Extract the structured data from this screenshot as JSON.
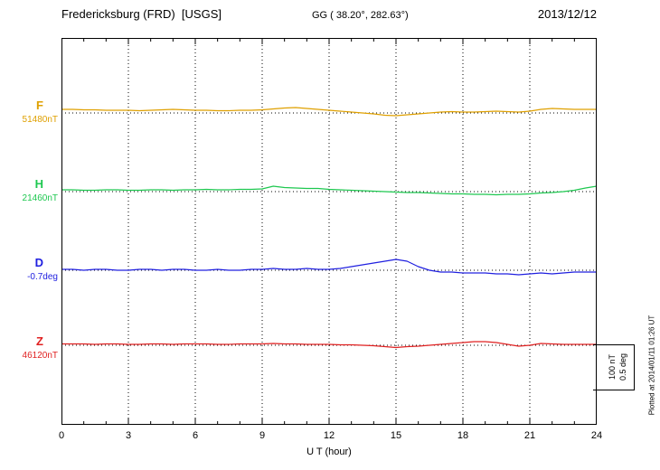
{
  "header": {
    "station_title": "Fredericksburg (FRD)  [USGS]",
    "coordinates": "GG ( 38.20°, 282.63°)",
    "date": "2013/12/12"
  },
  "axis": {
    "xlabel": "U T (hour)",
    "tick_hours": [
      0,
      3,
      6,
      9,
      12,
      15,
      18,
      21,
      24
    ],
    "tick_labels": [
      "0",
      "3",
      "6",
      "9",
      "12",
      "15",
      "18",
      "21",
      "24"
    ]
  },
  "scale_bar": {
    "nt_label": "100 nT",
    "deg_label": "0.5 deg"
  },
  "plotted_note": "Plotted at 2014/01/11 01:26 UT",
  "traces": [
    {
      "letter": "F",
      "value_label": "51480nT",
      "color": "#dfa000"
    },
    {
      "letter": "H",
      "value_label": "21460nT",
      "color": "#1ec850"
    },
    {
      "letter": "D",
      "value_label": "-0.7deg",
      "color": "#2020e0"
    },
    {
      "letter": "Z",
      "value_label": "46120nT",
      "color": "#e02020"
    }
  ],
  "chart_data": {
    "type": "line",
    "title": "Fredericksburg (FRD) [USGS] magnetogram 2013/12/12",
    "xlabel": "U T (hour)",
    "x_range_hours": [
      0,
      24
    ],
    "x_tick_interval_hours": 3,
    "grid": "vertical-dotted",
    "legend_position": "left-margin",
    "x": [
      0,
      0.5,
      1,
      1.5,
      2,
      2.5,
      3,
      3.5,
      4,
      4.5,
      5,
      5.5,
      6,
      6.5,
      7,
      7.5,
      8,
      8.5,
      9,
      9.5,
      10,
      10.5,
      11,
      11.5,
      12,
      12.5,
      13,
      13.5,
      14,
      14.5,
      15,
      15.5,
      16,
      16.5,
      17,
      17.5,
      18,
      18.5,
      19,
      19.5,
      20,
      20.5,
      21,
      21.5,
      22,
      22.5,
      23,
      23.5,
      24
    ],
    "series": [
      {
        "name": "F",
        "unit": "nT",
        "baseline": 51480,
        "color": "#dfa000",
        "offsets": [
          8,
          8,
          7,
          7,
          6,
          6,
          6,
          5,
          6,
          7,
          8,
          7,
          6,
          6,
          5,
          5,
          6,
          6,
          7,
          9,
          11,
          12,
          10,
          8,
          6,
          4,
          2,
          0,
          -2,
          -5,
          -6,
          -4,
          -2,
          0,
          2,
          3,
          2,
          2,
          3,
          4,
          3,
          2,
          4,
          8,
          10,
          9,
          8,
          8,
          8
        ]
      },
      {
        "name": "H",
        "unit": "nT",
        "baseline": 21460,
        "color": "#1ec850",
        "offsets": [
          4,
          4,
          3,
          3,
          4,
          4,
          3,
          3,
          4,
          4,
          3,
          4,
          4,
          5,
          4,
          4,
          5,
          5,
          6,
          12,
          9,
          8,
          7,
          7,
          5,
          4,
          3,
          2,
          1,
          0,
          -1,
          -2,
          -2,
          -3,
          -4,
          -5,
          -5,
          -6,
          -6,
          -7,
          -6,
          -6,
          -5,
          -3,
          -2,
          0,
          3,
          8,
          12
        ]
      },
      {
        "name": "D",
        "unit": "deg",
        "baseline": -0.7,
        "color": "#2020e0",
        "offsets": [
          0.01,
          0.01,
          0,
          0.01,
          0.01,
          0,
          0,
          0.01,
          0.01,
          0,
          0.01,
          0.01,
          0,
          0,
          0.01,
          0,
          0,
          0.01,
          0.01,
          0.02,
          0.01,
          0.01,
          0.02,
          0.01,
          0.01,
          0.02,
          0.04,
          0.06,
          0.08,
          0.1,
          0.12,
          0.1,
          0.04,
          0,
          -0.02,
          -0.02,
          -0.03,
          -0.03,
          -0.03,
          -0.04,
          -0.04,
          -0.05,
          -0.04,
          -0.03,
          -0.04,
          -0.03,
          -0.02,
          -0.02,
          -0.02
        ]
      },
      {
        "name": "Z",
        "unit": "nT",
        "baseline": 46120,
        "color": "#e02020",
        "offsets": [
          3,
          3,
          3,
          2,
          3,
          3,
          2,
          2,
          3,
          3,
          2,
          3,
          3,
          3,
          2,
          2,
          3,
          3,
          3,
          4,
          3,
          3,
          2,
          2,
          2,
          1,
          1,
          0,
          -1,
          -3,
          -5,
          -3,
          -2,
          0,
          2,
          4,
          6,
          8,
          8,
          6,
          2,
          -2,
          0,
          4,
          3,
          2,
          2,
          2,
          2
        ]
      }
    ],
    "scale_bar": {
      "nT": 100,
      "deg": 0.5
    }
  }
}
